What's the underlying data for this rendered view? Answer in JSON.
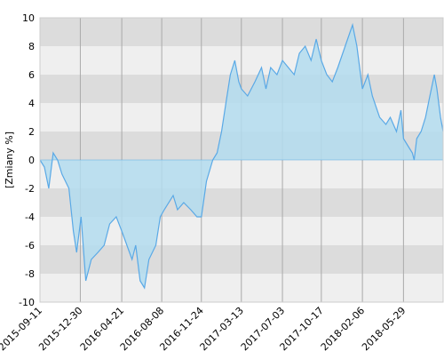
{
  "chart_data": {
    "type": "area",
    "y_label": "[Zmiany %]",
    "x": [
      "2015-09-11",
      "2015-09-23",
      "2015-10-05",
      "2015-10-17",
      "2015-10-29",
      "2015-11-10",
      "2015-11-29",
      "2015-12-11",
      "2015-12-20",
      "2016-01-01",
      "2016-01-14",
      "2016-01-29",
      "2016-02-16",
      "2016-03-04",
      "2016-03-19",
      "2016-04-06",
      "2016-04-21",
      "2016-05-05",
      "2016-05-19",
      "2016-05-29",
      "2016-06-10",
      "2016-06-22",
      "2016-07-04",
      "2016-07-23",
      "2016-08-04",
      "2016-08-15",
      "2016-09-08",
      "2016-09-20",
      "2016-10-07",
      "2016-10-26",
      "2016-11-12",
      "2016-11-24",
      "2016-12-08",
      "2016-12-25",
      "2017-01-06",
      "2017-01-18",
      "2017-01-30",
      "2017-02-11",
      "2017-02-23",
      "2017-03-06",
      "2017-03-13",
      "2017-03-30",
      "2017-04-19",
      "2017-05-07",
      "2017-05-19",
      "2017-06-01",
      "2017-06-18",
      "2017-07-03",
      "2017-07-19",
      "2017-08-04",
      "2017-08-18",
      "2017-09-03",
      "2017-09-19",
      "2017-10-03",
      "2017-10-17",
      "2017-11-01",
      "2017-11-16",
      "2017-12-01",
      "2017-12-21",
      "2018-01-10",
      "2018-01-22",
      "2018-02-06",
      "2018-02-21",
      "2018-03-05",
      "2018-03-25",
      "2018-04-11",
      "2018-04-23",
      "2018-05-10",
      "2018-05-22",
      "2018-05-29",
      "2018-06-10",
      "2018-06-22",
      "2018-06-27",
      "2018-07-04",
      "2018-07-16",
      "2018-07-28",
      "2018-08-09",
      "2018-08-21",
      "2018-08-28",
      "2018-09-07",
      "2018-09-14"
    ],
    "values": [
      0,
      -0.5,
      -2,
      0.5,
      0,
      -1,
      -2,
      -5,
      -6.5,
      -4,
      -8.5,
      -7,
      -6.5,
      -6,
      -4.5,
      -4,
      -5,
      -6,
      -7,
      -6,
      -8.5,
      -9,
      -7,
      -6,
      -4,
      -3.5,
      -2.5,
      -3.5,
      -3,
      -3.5,
      -4,
      -4,
      -1.5,
      0,
      0.5,
      2,
      4,
      6,
      7,
      5.5,
      5,
      4.5,
      5.5,
      6.5,
      5,
      6.5,
      6,
      7,
      6.5,
      6,
      7.5,
      8,
      7,
      8.5,
      7,
      6,
      5.5,
      6.5,
      8,
      9.5,
      8,
      5,
      6,
      4.5,
      3,
      2.5,
      3,
      2,
      3.5,
      1.5,
      1,
      0.5,
      0,
      1.5,
      2,
      3,
      4.5,
      6,
      5,
      3,
      2
    ],
    "color": "#5aa9e6",
    "fill": "#b3dcef",
    "xlim": [
      "2015-09-11",
      "2018-09-14"
    ],
    "xticks": [
      "2015-09-11",
      "2015-12-30",
      "2016-04-21",
      "2016-08-08",
      "2016-11-24",
      "2017-03-13",
      "2017-07-03",
      "2017-10-17",
      "2018-02-06",
      "2018-05-29"
    ],
    "ylim": [
      -10,
      10
    ],
    "yticks": [
      -10,
      -8,
      -6,
      -4,
      -2,
      0,
      2,
      4,
      6,
      8,
      10
    ],
    "grid": true
  }
}
